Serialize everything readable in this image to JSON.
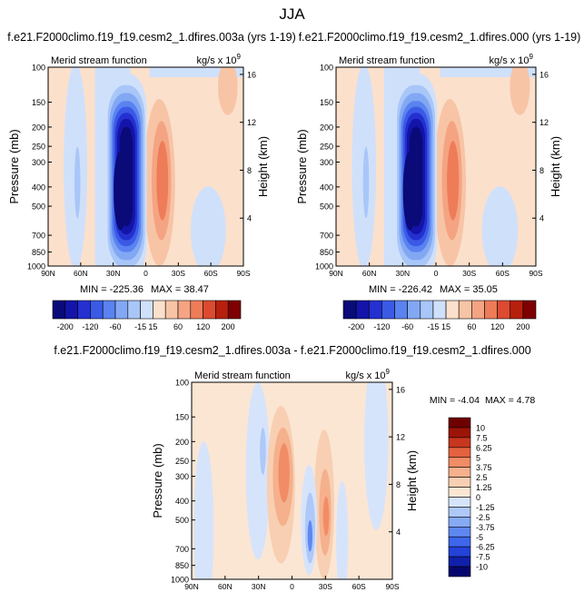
{
  "main_title": "JJA",
  "colors": {
    "cb_main": [
      "#0a0a78",
      "#1414aa",
      "#2430d0",
      "#3a5ae6",
      "#5a82f0",
      "#82a8f4",
      "#a8c6f8",
      "#cfe0fb",
      "#fbe0cc",
      "#f8c4a6",
      "#f4a482",
      "#ee7c58",
      "#dc4a30",
      "#b8200e",
      "#7e0000"
    ],
    "cb_diff": [
      "#06066e",
      "#1020aa",
      "#2242d8",
      "#3d66ea",
      "#5e88f0",
      "#86aaf4",
      "#aec8f8",
      "#d6e4fb",
      "#fbe6d4",
      "#f8cfb2",
      "#f5b08c",
      "#f18c66",
      "#e4623f",
      "#c6371e",
      "#9c1407",
      "#6e0000"
    ]
  },
  "chart_data": [
    {
      "type": "contour",
      "title": "f.e21.F2000climo.f19_f19.cesm2_1.dfires.003a (yrs 1-19)",
      "subtitle": "Merid stream function",
      "units": "kg/s x 10",
      "units_exp": "9",
      "xlabel": "",
      "ylabel": "Pressure (mb)",
      "ylabel_right": "Height (km)",
      "x_ticks": [
        "90N",
        "60N",
        "30N",
        "0",
        "30S",
        "60S",
        "90S"
      ],
      "y_ticks": [
        "100",
        "150",
        "200",
        "250",
        "300",
        "400",
        "500",
        "700",
        "850",
        "1000"
      ],
      "y_ticks_right": [
        "16",
        "12",
        "8",
        "4"
      ],
      "min_label": "MIN = -225.36",
      "max_label": "MAX =  38.47",
      "min": -225.36,
      "max": 38.47
    },
    {
      "type": "contour",
      "title": "f.e21.F2000climo.f19_f19.cesm2_1.dfires.000 (yrs 1-19)",
      "subtitle": "Merid stream function",
      "units": "kg/s x 10",
      "units_exp": "9",
      "xlabel": "",
      "ylabel": "Pressure (mb)",
      "ylabel_right": "Height (km)",
      "x_ticks": [
        "90N",
        "60N",
        "30N",
        "0",
        "30S",
        "60S",
        "90S"
      ],
      "y_ticks": [
        "100",
        "150",
        "200",
        "250",
        "300",
        "400",
        "500",
        "700",
        "850",
        "1000"
      ],
      "y_ticks_right": [
        "16",
        "12",
        "8",
        "4"
      ],
      "min_label": "MIN = -226.42",
      "max_label": "MAX =  35.05",
      "min": -226.42,
      "max": 35.05
    },
    {
      "type": "contour",
      "title": "f.e21.F2000climo.f19_f19.cesm2_1.dfires.003a - f.e21.F2000climo.f19_f19.cesm2_1.dfires.000",
      "subtitle": "Merid stream function",
      "units": "kg/s x 10",
      "units_exp": "9",
      "xlabel": "",
      "ylabel": "Pressure (mb)",
      "ylabel_right": "Height (km)",
      "x_ticks": [
        "90N",
        "60N",
        "30N",
        "0",
        "30S",
        "60S",
        "90S"
      ],
      "y_ticks": [
        "100",
        "150",
        "200",
        "250",
        "300",
        "400",
        "500",
        "700",
        "850",
        "1000"
      ],
      "y_ticks_right": [
        "16",
        "12",
        "8",
        "4"
      ],
      "min_label": "MIN = -4.04",
      "max_label": "MAX =  4.78",
      "min": -4.04,
      "max": 4.78
    }
  ],
  "colorbar_main": {
    "labels": [
      "-200",
      "-120",
      "-60",
      "-15",
      "15",
      "60",
      "120",
      "200"
    ]
  },
  "colorbar_diff": {
    "labels": [
      "10",
      "7.5",
      "6.25",
      "5",
      "3.75",
      "2.5",
      "1.25",
      "0",
      "-1.25",
      "-2.5",
      "-3.75",
      "-5",
      "-6.25",
      "-7.5",
      "-10"
    ]
  }
}
